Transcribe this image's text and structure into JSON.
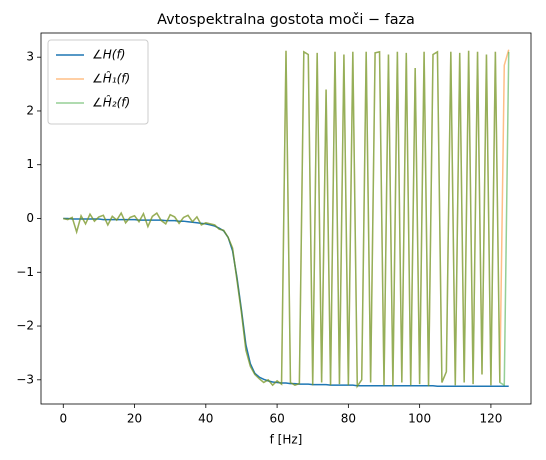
{
  "chart_data": {
    "type": "line",
    "title": "Avtospektralna gostota moči − faza",
    "xlabel": "f [Hz]",
    "x": [
      0,
      1.25,
      2.5,
      3.75,
      5,
      6.25,
      7.5,
      8.75,
      10,
      11.25,
      12.5,
      13.75,
      15,
      16.25,
      17.5,
      18.75,
      20,
      21.25,
      22.5,
      23.75,
      25,
      26.25,
      27.5,
      28.75,
      30,
      31.25,
      32.5,
      33.75,
      35,
      36.25,
      37.5,
      38.75,
      40,
      41.25,
      42.5,
      43.75,
      45,
      46.25,
      47.5,
      48.75,
      50,
      51.25,
      52.5,
      53.75,
      55,
      56.25,
      57.5,
      58.75,
      60,
      61.25,
      62.5,
      63.75,
      65,
      66.25,
      67.5,
      68.75,
      70,
      71.25,
      72.5,
      73.75,
      75,
      76.25,
      77.5,
      78.75,
      80,
      81.25,
      82.5,
      83.75,
      85,
      86.25,
      87.5,
      88.75,
      90,
      91.25,
      92.5,
      93.75,
      95,
      96.25,
      97.5,
      98.75,
      100,
      101.25,
      102.5,
      103.75,
      105,
      106.25,
      107.5,
      108.75,
      110,
      111.25,
      112.5,
      113.75,
      115,
      116.25,
      117.5,
      118.75,
      120,
      121.25,
      122.5,
      123.75,
      125
    ],
    "series": [
      {
        "name": "∠H(f)",
        "color": "#1f77b4",
        "opacity": 1,
        "values": [
          0,
          0,
          -0.01,
          -0.01,
          -0.01,
          -0.01,
          -0.01,
          -0.01,
          -0.01,
          -0.02,
          -0.02,
          -0.02,
          -0.02,
          -0.02,
          -0.02,
          -0.02,
          -0.02,
          -0.03,
          -0.03,
          -0.03,
          -0.03,
          -0.03,
          -0.03,
          -0.04,
          -0.04,
          -0.04,
          -0.05,
          -0.05,
          -0.06,
          -0.07,
          -0.08,
          -0.09,
          -0.1,
          -0.12,
          -0.14,
          -0.18,
          -0.23,
          -0.35,
          -0.6,
          -1.1,
          -1.7,
          -2.35,
          -2.7,
          -2.88,
          -2.95,
          -2.99,
          -3.02,
          -3.04,
          -3.05,
          -3.06,
          -3.06,
          -3.07,
          -3.07,
          -3.08,
          -3.08,
          -3.08,
          -3.09,
          -3.09,
          -3.09,
          -3.09,
          -3.1,
          -3.1,
          -3.1,
          -3.1,
          -3.1,
          -3.1,
          -3.11,
          -3.11,
          -3.11,
          -3.11,
          -3.11,
          -3.11,
          -3.11,
          -3.11,
          -3.11,
          -3.11,
          -3.11,
          -3.11,
          -3.11,
          -3.11,
          -3.11,
          -3.11,
          -3.11,
          -3.11,
          -3.12,
          -3.12,
          -3.12,
          -3.12,
          -3.12,
          -3.12,
          -3.12,
          -3.12,
          -3.12,
          -3.12,
          -3.12,
          -3.12,
          -3.12,
          -3.12,
          -3.12,
          -3.12,
          -3.12
        ]
      },
      {
        "name": "∠Ĥ₁(f)",
        "color": "#ff7f0e",
        "opacity": 0.5,
        "values": [
          0,
          -0.02,
          0.02,
          -0.25,
          0.05,
          -0.1,
          0.08,
          -0.05,
          0.03,
          0.06,
          -0.12,
          0.04,
          -0.03,
          0.1,
          -0.08,
          0.02,
          0.05,
          -0.06,
          0.09,
          -0.15,
          0.04,
          0.1,
          -0.04,
          -0.1,
          0.07,
          0.03,
          -0.09,
          0.02,
          0.06,
          -0.06,
          0.03,
          -0.12,
          -0.08,
          -0.1,
          -0.12,
          -0.2,
          -0.22,
          -0.35,
          -0.55,
          -1.15,
          -1.75,
          -2.45,
          -2.75,
          -2.9,
          -2.98,
          -3.05,
          -3.0,
          -3.1,
          -3.02,
          -3.08,
          3.12,
          -3.05,
          -3.1,
          -3.07,
          3.1,
          3.05,
          -3.1,
          3.08,
          -3.05,
          2.4,
          -3.1,
          3.1,
          -3.08,
          3.05,
          -3.1,
          3.1,
          -3.12,
          -3.0,
          3.1,
          -3.05,
          3.08,
          3.1,
          -3.1,
          3.05,
          -3.12,
          3.1,
          -3.05,
          3.08,
          -3.1,
          2.8,
          -3.08,
          3.1,
          -3.12,
          3.05,
          3.1,
          -3.05,
          -2.85,
          3.1,
          -3.1,
          3.08,
          -3.05,
          3.12,
          -3.08,
          3.1,
          -2.9,
          3.05,
          -3.1,
          3.1,
          -3.05,
          2.85,
          3.14
        ]
      },
      {
        "name": "∠Ĥ₂(f)",
        "color": "#2ca02c",
        "opacity": 0.5,
        "values": [
          0,
          -0.02,
          0.02,
          -0.25,
          0.05,
          -0.1,
          0.08,
          -0.05,
          0.03,
          0.06,
          -0.12,
          0.04,
          -0.03,
          0.1,
          -0.08,
          0.02,
          0.05,
          -0.06,
          0.09,
          -0.15,
          0.04,
          0.1,
          -0.04,
          -0.1,
          0.07,
          0.03,
          -0.09,
          0.02,
          0.06,
          -0.06,
          0.03,
          -0.12,
          -0.08,
          -0.1,
          -0.12,
          -0.2,
          -0.22,
          -0.35,
          -0.55,
          -1.15,
          -1.75,
          -2.45,
          -2.75,
          -2.9,
          -2.98,
          -3.05,
          -3.0,
          -3.1,
          -3.02,
          -3.08,
          3.12,
          -3.05,
          -3.1,
          -3.07,
          3.1,
          3.05,
          -3.1,
          3.08,
          -3.05,
          2.4,
          -3.1,
          3.1,
          -3.08,
          3.05,
          -3.1,
          3.1,
          -3.12,
          -3.0,
          3.1,
          -3.05,
          3.08,
          3.1,
          -3.1,
          3.05,
          -3.12,
          3.1,
          -3.05,
          3.08,
          -3.1,
          2.8,
          -3.08,
          3.1,
          -3.12,
          3.05,
          3.1,
          -3.05,
          -2.85,
          3.1,
          -3.1,
          3.08,
          -3.05,
          3.12,
          -3.08,
          3.1,
          -2.9,
          3.05,
          -3.1,
          3.1,
          -3.05,
          -3.1,
          3.1
        ]
      }
    ],
    "xlim": [
      -6.25,
      131.25
    ],
    "xticks": [
      0,
      20,
      40,
      60,
      80,
      100,
      120
    ],
    "ylim": [
      -3.45,
      3.45
    ],
    "yticks": [
      {
        "value": -3,
        "label": "−3"
      },
      {
        "value": -2,
        "label": "−2"
      },
      {
        "value": -1,
        "label": "−1"
      },
      0,
      1,
      2,
      3
    ],
    "legend": "upper left",
    "grid": false
  }
}
